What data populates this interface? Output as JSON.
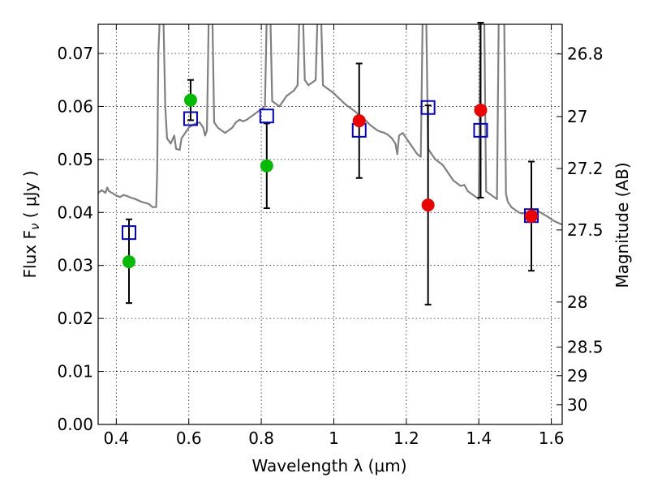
{
  "chart_data": {
    "type": "scatter",
    "title": "",
    "xlabel": "Wavelength  λ (μm)",
    "ylabel_main": "Flux  F",
    "ylabel_sub": "ν",
    "ylabel_rest": "  ( μJy )",
    "ylabel_right": "Magnitude (AB)",
    "xlim": [
      0.35,
      1.63
    ],
    "ylim": [
      0,
      0.0755
    ],
    "grid": true,
    "x_ticks": [
      0.4,
      0.6,
      0.8,
      1.0,
      1.2,
      1.4,
      1.6
    ],
    "x_tick_labels": [
      "0.4",
      "0.6",
      "0.8",
      "1",
      "1.2",
      "1.4",
      "1.6"
    ],
    "y_ticks": [
      0,
      0.01,
      0.02,
      0.03,
      0.04,
      0.05,
      0.06,
      0.07
    ],
    "y_tick_labels": [
      "0.00",
      "0.01",
      "0.02",
      "0.03",
      "0.04",
      "0.05",
      "0.06",
      "0.07"
    ],
    "mag_ticks": [
      {
        "label": "26.8",
        "flux": 0.0699
      },
      {
        "label": "27",
        "flux": 0.0581
      },
      {
        "label": "27.2",
        "flux": 0.0483
      },
      {
        "label": "27.5",
        "flux": 0.0367
      },
      {
        "label": "28",
        "flux": 0.0231
      },
      {
        "label": "28.5",
        "flux": 0.0146
      },
      {
        "label": "29",
        "flux": 0.0092
      },
      {
        "label": "30",
        "flux": 0.0037
      }
    ],
    "colors": {
      "sed": "#808080",
      "model": "#0000cc",
      "green": "#00bb00",
      "red": "#ee0000",
      "errorbar": "#000000"
    },
    "sed_curve": [
      [
        0.35,
        0.0437
      ],
      [
        0.36,
        0.0442
      ],
      [
        0.37,
        0.0437
      ],
      [
        0.375,
        0.0447
      ],
      [
        0.38,
        0.044
      ],
      [
        0.39,
        0.0436
      ],
      [
        0.4,
        0.0432
      ],
      [
        0.41,
        0.0429
      ],
      [
        0.42,
        0.0433
      ],
      [
        0.43,
        0.0431
      ],
      [
        0.44,
        0.0428
      ],
      [
        0.45,
        0.0426
      ],
      [
        0.46,
        0.0423
      ],
      [
        0.47,
        0.042
      ],
      [
        0.48,
        0.0418
      ],
      [
        0.49,
        0.0416
      ],
      [
        0.5,
        0.041
      ],
      [
        0.51,
        0.041
      ],
      [
        0.513,
        0.048
      ],
      [
        0.516,
        0.07
      ],
      [
        0.52,
        0.077
      ],
      [
        0.53,
        0.077
      ],
      [
        0.535,
        0.06
      ],
      [
        0.54,
        0.054
      ],
      [
        0.55,
        0.053
      ],
      [
        0.56,
        0.0545
      ],
      [
        0.565,
        0.052
      ],
      [
        0.575,
        0.0518
      ],
      [
        0.58,
        0.054
      ],
      [
        0.59,
        0.055
      ],
      [
        0.6,
        0.056
      ],
      [
        0.61,
        0.0565
      ],
      [
        0.62,
        0.0568
      ],
      [
        0.63,
        0.057
      ],
      [
        0.64,
        0.056
      ],
      [
        0.645,
        0.0545
      ],
      [
        0.65,
        0.0555
      ],
      [
        0.655,
        0.077
      ],
      [
        0.665,
        0.077
      ],
      [
        0.67,
        0.057
      ],
      [
        0.68,
        0.056
      ],
      [
        0.69,
        0.0555
      ],
      [
        0.7,
        0.055
      ],
      [
        0.71,
        0.0555
      ],
      [
        0.72,
        0.056
      ],
      [
        0.73,
        0.057
      ],
      [
        0.74,
        0.0575
      ],
      [
        0.75,
        0.0572
      ],
      [
        0.76,
        0.0575
      ],
      [
        0.77,
        0.058
      ],
      [
        0.78,
        0.0585
      ],
      [
        0.79,
        0.059
      ],
      [
        0.8,
        0.0595
      ],
      [
        0.81,
        0.06
      ],
      [
        0.815,
        0.077
      ],
      [
        0.825,
        0.077
      ],
      [
        0.83,
        0.061
      ],
      [
        0.84,
        0.0605
      ],
      [
        0.85,
        0.06
      ],
      [
        0.86,
        0.061
      ],
      [
        0.87,
        0.062
      ],
      [
        0.88,
        0.0625
      ],
      [
        0.89,
        0.063
      ],
      [
        0.9,
        0.064
      ],
      [
        0.905,
        0.077
      ],
      [
        0.915,
        0.077
      ],
      [
        0.92,
        0.065
      ],
      [
        0.93,
        0.064
      ],
      [
        0.94,
        0.0645
      ],
      [
        0.95,
        0.065
      ],
      [
        0.955,
        0.077
      ],
      [
        0.965,
        0.077
      ],
      [
        0.97,
        0.064
      ],
      [
        0.98,
        0.0635
      ],
      [
        0.99,
        0.063
      ],
      [
        1.0,
        0.0625
      ],
      [
        1.01,
        0.0618
      ],
      [
        1.02,
        0.0612
      ],
      [
        1.03,
        0.0605
      ],
      [
        1.04,
        0.06
      ],
      [
        1.05,
        0.0595
      ],
      [
        1.06,
        0.059
      ],
      [
        1.07,
        0.0583
      ],
      [
        1.08,
        0.0578
      ],
      [
        1.09,
        0.0572
      ],
      [
        1.1,
        0.0565
      ],
      [
        1.11,
        0.056
      ],
      [
        1.12,
        0.0555
      ],
      [
        1.13,
        0.0552
      ],
      [
        1.14,
        0.055
      ],
      [
        1.15,
        0.0546
      ],
      [
        1.16,
        0.054
      ],
      [
        1.17,
        0.053
      ],
      [
        1.175,
        0.051
      ],
      [
        1.18,
        0.0545
      ],
      [
        1.19,
        0.055
      ],
      [
        1.2,
        0.054
      ],
      [
        1.21,
        0.053
      ],
      [
        1.22,
        0.052
      ],
      [
        1.23,
        0.051
      ],
      [
        1.24,
        0.0505
      ],
      [
        1.245,
        0.077
      ],
      [
        1.255,
        0.077
      ],
      [
        1.26,
        0.052
      ],
      [
        1.27,
        0.051
      ],
      [
        1.28,
        0.05
      ],
      [
        1.29,
        0.0495
      ],
      [
        1.3,
        0.049
      ],
      [
        1.31,
        0.048
      ],
      [
        1.32,
        0.047
      ],
      [
        1.33,
        0.046
      ],
      [
        1.34,
        0.0455
      ],
      [
        1.35,
        0.045
      ],
      [
        1.36,
        0.0452
      ],
      [
        1.37,
        0.044
      ],
      [
        1.38,
        0.0435
      ],
      [
        1.39,
        0.043
      ],
      [
        1.4,
        0.0425
      ],
      [
        1.405,
        0.077
      ],
      [
        1.415,
        0.077
      ],
      [
        1.42,
        0.044
      ],
      [
        1.43,
        0.0435
      ],
      [
        1.44,
        0.043
      ],
      [
        1.45,
        0.0425
      ],
      [
        1.455,
        0.077
      ],
      [
        1.47,
        0.077
      ],
      [
        1.475,
        0.0435
      ],
      [
        1.48,
        0.042
      ],
      [
        1.49,
        0.041
      ],
      [
        1.5,
        0.0405
      ],
      [
        1.51,
        0.04
      ],
      [
        1.52,
        0.0398
      ],
      [
        1.53,
        0.04
      ],
      [
        1.54,
        0.0402
      ],
      [
        1.55,
        0.0405
      ],
      [
        1.56,
        0.0403
      ],
      [
        1.57,
        0.04
      ],
      [
        1.58,
        0.0396
      ],
      [
        1.59,
        0.0392
      ],
      [
        1.6,
        0.0387
      ],
      [
        1.61,
        0.0383
      ],
      [
        1.62,
        0.038
      ],
      [
        1.63,
        0.0377
      ]
    ],
    "model_squares": [
      {
        "x": 0.435,
        "y": 0.0362
      },
      {
        "x": 0.605,
        "y": 0.0577
      },
      {
        "x": 0.815,
        "y": 0.0582
      },
      {
        "x": 1.07,
        "y": 0.0555
      },
      {
        "x": 1.26,
        "y": 0.0598
      },
      {
        "x": 1.405,
        "y": 0.0555
      },
      {
        "x": 1.545,
        "y": 0.0394
      }
    ],
    "series": [
      {
        "color_key": "green",
        "points": [
          {
            "x": 0.435,
            "y": 0.0307,
            "err_low": 0.0078,
            "err_high": 0.008
          },
          {
            "x": 0.605,
            "y": 0.0612,
            "err_low": 0.0038,
            "err_high": 0.0038
          },
          {
            "x": 0.815,
            "y": 0.0488,
            "err_low": 0.008,
            "err_high": 0.008
          }
        ]
      },
      {
        "color_key": "red",
        "points": [
          {
            "x": 1.07,
            "y": 0.0573,
            "err_low": 0.0108,
            "err_high": 0.0108
          },
          {
            "x": 1.26,
            "y": 0.0414,
            "err_low": 0.0188,
            "err_high": 0.0188
          },
          {
            "x": 1.405,
            "y": 0.0593,
            "err_low": 0.0165,
            "err_high": 0.0165
          },
          {
            "x": 1.545,
            "y": 0.0393,
            "err_low": 0.0103,
            "err_high": 0.0103
          }
        ]
      }
    ]
  }
}
